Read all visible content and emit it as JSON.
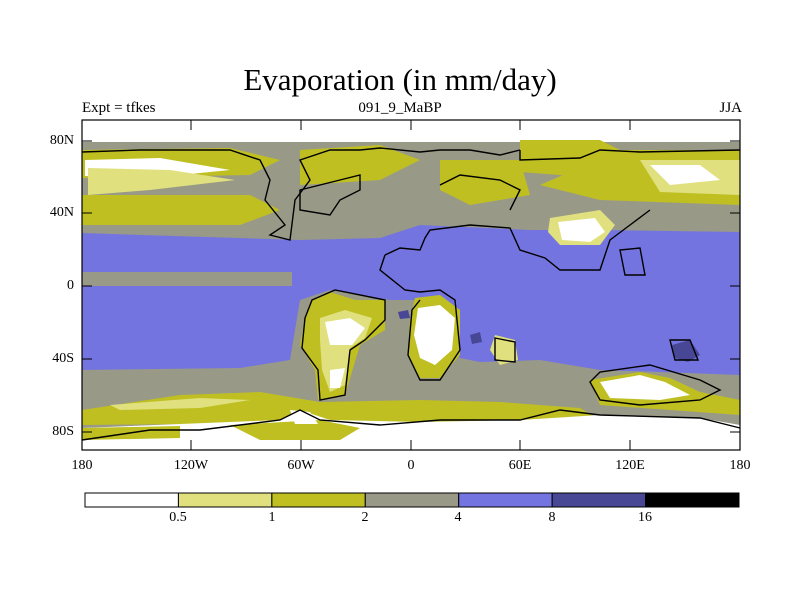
{
  "title": "Evaporation (in mm/day)",
  "left_label": "Expt = tfkes",
  "center_label": "091_9_MaBP",
  "right_label": "JJA",
  "lat_ticks": [
    "80N",
    "40N",
    "0",
    "40S",
    "80S"
  ],
  "lon_ticks": [
    "180",
    "120W",
    "60W",
    "0",
    "60E",
    "120E",
    "180"
  ],
  "colorbar": {
    "levels": [
      "0.5",
      "1",
      "2",
      "4",
      "8",
      "16"
    ],
    "colors": [
      "#ffffff",
      "#e0e07e",
      "#bfbf22",
      "#999988",
      "#7474e0",
      "#474796",
      "#000000"
    ]
  }
}
